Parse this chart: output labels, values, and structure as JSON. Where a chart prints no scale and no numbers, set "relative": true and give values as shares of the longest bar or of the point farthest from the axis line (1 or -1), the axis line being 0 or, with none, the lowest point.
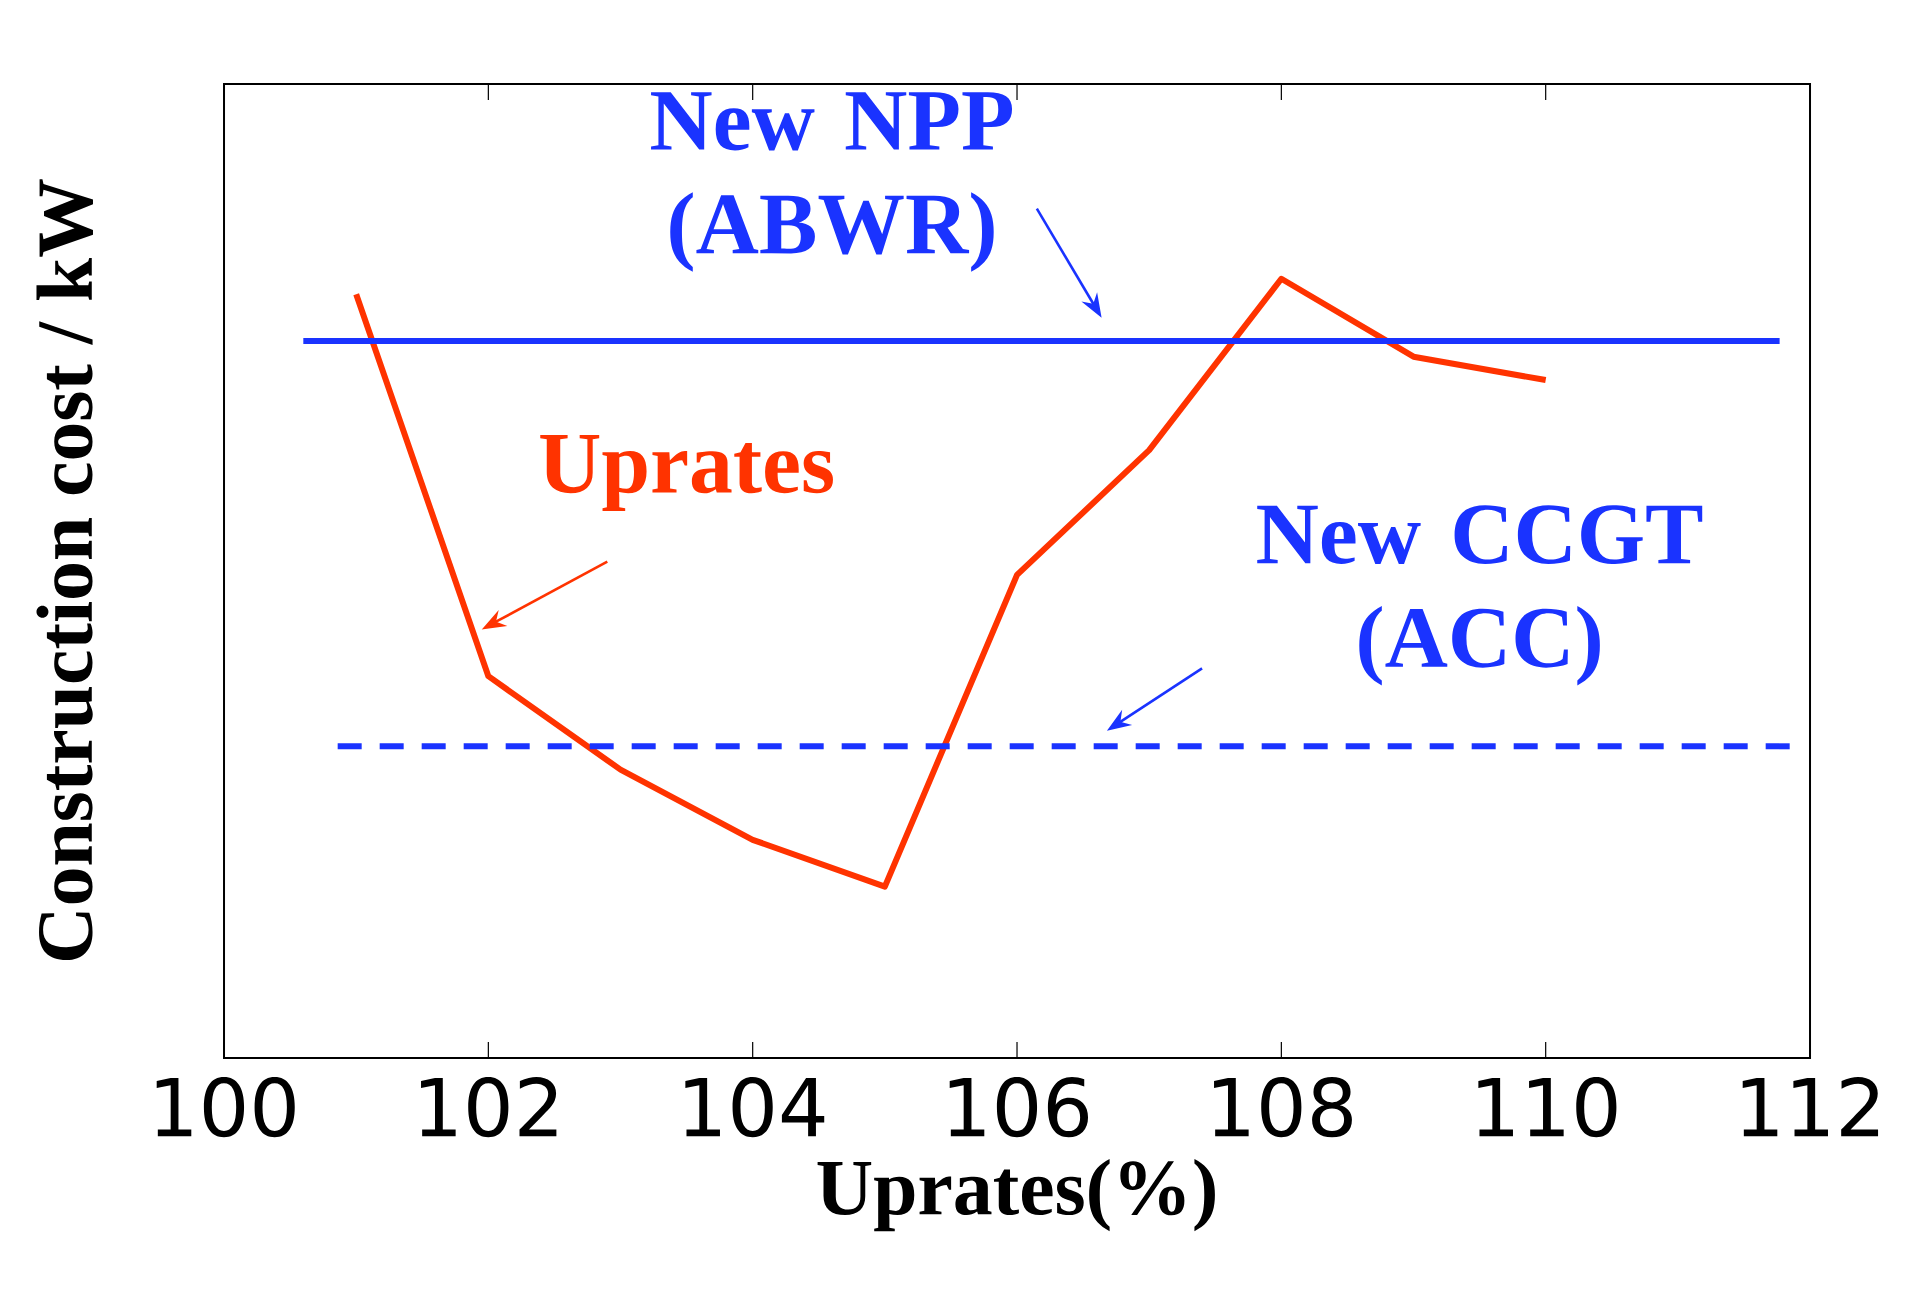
{
  "chart_data": {
    "type": "line",
    "relative": true,
    "xlabel": "Uprates(%)",
    "ylabel": "Construction cost / kW",
    "xlim": [
      100,
      112
    ],
    "xticks": [
      100,
      102,
      104,
      106,
      108,
      110,
      112
    ],
    "legend": false,
    "grid": false,
    "series": [
      {
        "name": "Uprates",
        "color": "#ff3300",
        "line_style": "solid",
        "x": [
          101,
          102,
          103,
          104,
          105,
          106,
          107,
          108,
          109,
          110
        ],
        "values": [
          0.98,
          0.49,
          0.37,
          0.28,
          0.22,
          0.62,
          0.78,
          1,
          0.9,
          0.87
        ]
      },
      {
        "name": "New NPP (ABWR)",
        "color": "#1a33ff",
        "line_style": "solid",
        "x": [
          100.6,
          111.77
        ],
        "values": [
          0.92,
          0.92
        ]
      },
      {
        "name": "New CCGT (ACC)",
        "color": "#1a33ff",
        "line_style": "dashed",
        "x": [
          100.86,
          111.85
        ],
        "values": [
          0.4,
          0.4
        ]
      }
    ]
  }
}
